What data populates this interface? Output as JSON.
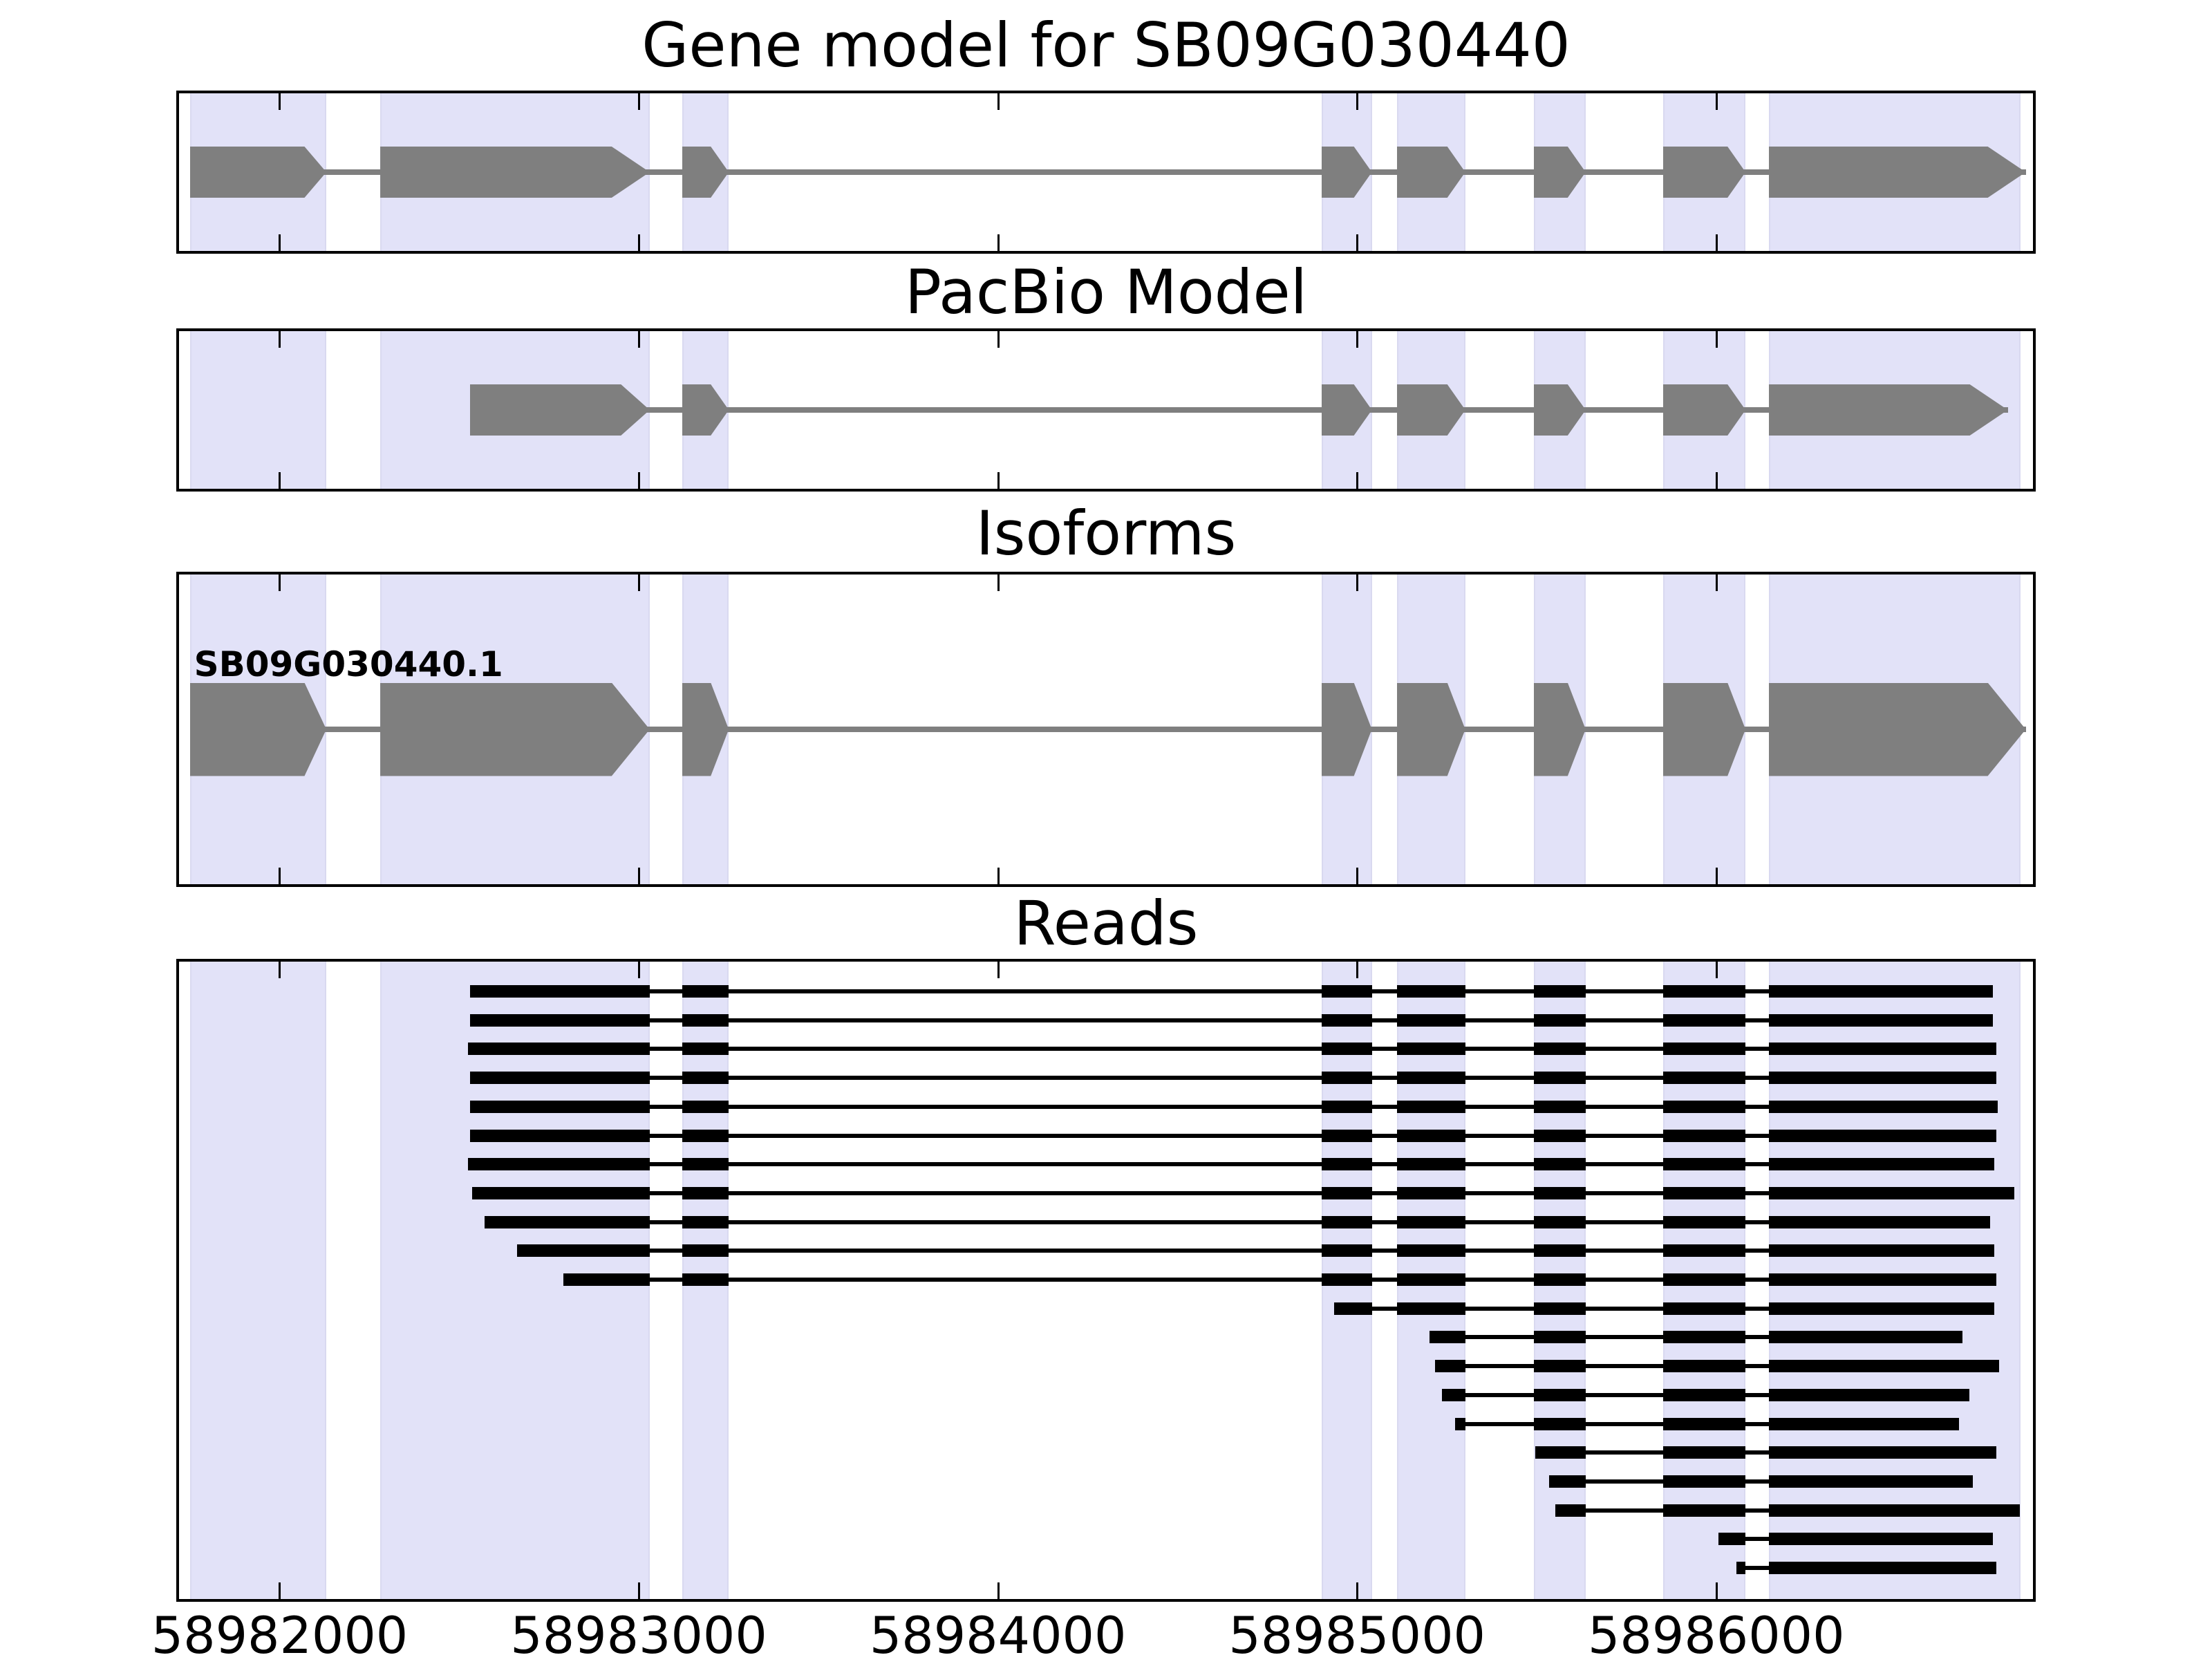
{
  "figure": {
    "kind": "gene-model-browser-figure",
    "background": "#ffffff"
  },
  "colors": {
    "exon_fill": "#7f7f7f",
    "intron_line": "#7f7f7f",
    "read_fill": "#000000",
    "highlight_band_fill": "#e2e2f8",
    "highlight_band_edge": "#d9d9f0",
    "panel_border": "#000000",
    "tick": "#000000",
    "text": "#000000"
  },
  "chart_data": {
    "type": "gene-model-tracks",
    "x_range": [
      58981720,
      58986880
    ],
    "x_ticks": [
      58982000,
      58983000,
      58984000,
      58985000,
      58986000
    ],
    "x_tick_labels": [
      "58982000",
      "58983000",
      "58984000",
      "58985000",
      "58986000"
    ],
    "grid": false,
    "exon_structure": [
      [
        58981750,
        58982130
      ],
      [
        58982280,
        58983030
      ],
      [
        58983120,
        58983250
      ],
      [
        58984900,
        58985040
      ],
      [
        58985110,
        58985300
      ],
      [
        58985490,
        58985635
      ],
      [
        58985850,
        58986080
      ],
      [
        58986145,
        58986860
      ]
    ],
    "exon_highlights": [
      [
        58981750,
        58982130
      ],
      [
        58982280,
        58983030
      ],
      [
        58983120,
        58983250
      ],
      [
        58984900,
        58985040
      ],
      [
        58985110,
        58985300
      ],
      [
        58985490,
        58985635
      ],
      [
        58985850,
        58986080
      ],
      [
        58986145,
        58986845
      ]
    ],
    "tracks": [
      {
        "title": "Gene model for SB09G030440",
        "type": "transcript",
        "features": [
          {
            "name": "SB09G030440",
            "start": 58981750,
            "end": 58986860,
            "strand": "+"
          }
        ]
      },
      {
        "title": "PacBio Model",
        "type": "transcript",
        "features": [
          {
            "name": "PacBio model",
            "start": 58982530,
            "end": 58986810,
            "strand": "+"
          }
        ]
      },
      {
        "title": "Isoforms",
        "type": "transcript",
        "features": [
          {
            "name": "SB09G030440.1",
            "label": "SB09G030440.1",
            "start": 58981750,
            "end": 58986860,
            "strand": "+"
          }
        ]
      },
      {
        "title": "Reads",
        "type": "reads",
        "reads": [
          [
            58982530,
            58986768
          ],
          [
            58982530,
            58986768
          ],
          [
            58982525,
            58986778
          ],
          [
            58982530,
            58986778
          ],
          [
            58982530,
            58986782
          ],
          [
            58982530,
            58986778
          ],
          [
            58982525,
            58986772
          ],
          [
            58982535,
            58986828
          ],
          [
            58982570,
            58986760
          ],
          [
            58982660,
            58986772
          ],
          [
            58982790,
            58986778
          ],
          [
            58984935,
            58986772
          ],
          [
            58985200,
            58986684
          ],
          [
            58985215,
            58986785
          ],
          [
            58985235,
            58986703
          ],
          [
            58985272,
            58986674
          ],
          [
            58985494,
            58986778
          ],
          [
            58985533,
            58986712
          ],
          [
            58985550,
            58986844
          ],
          [
            58986005,
            58986768
          ],
          [
            58986055,
            58986778
          ]
        ]
      }
    ]
  }
}
